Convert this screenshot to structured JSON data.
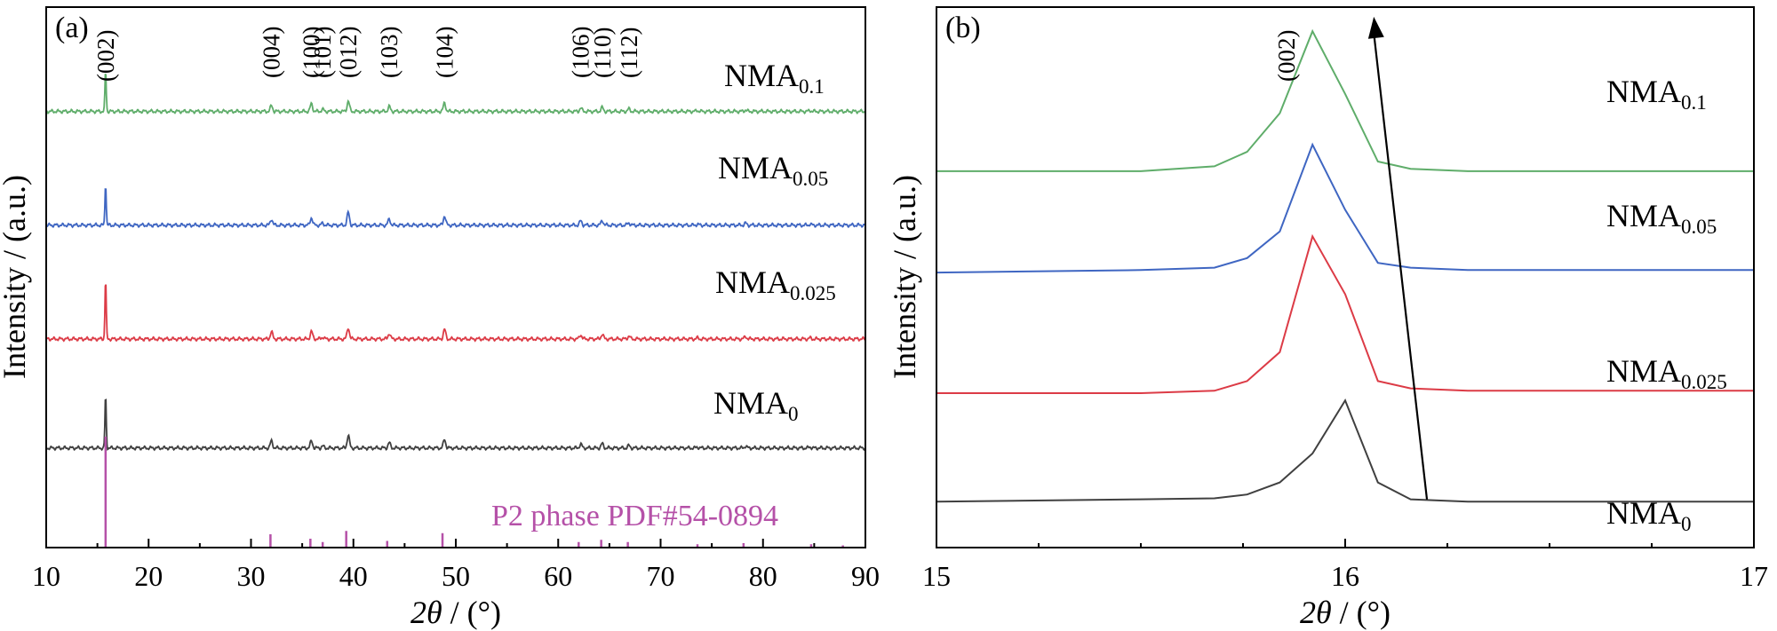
{
  "figure": {
    "ylabel": "Intensity / (a.u.)",
    "xlabel_symbol": "2θ",
    "xlabel_unit": " / (°)"
  },
  "chart_data": [
    {
      "panel": "(a)",
      "type": "line",
      "xlim": [
        10,
        90
      ],
      "x_ticks": [
        10,
        20,
        30,
        40,
        50,
        60,
        70,
        80,
        90
      ],
      "y_ticks": "none",
      "grid": false,
      "ylabel": "Intensity / (a.u.)",
      "xlabel": "2θ / (°)",
      "peak_labels": [
        {
          "label": "(002)",
          "x": 15.8
        },
        {
          "label": "(004)",
          "x": 32.0
        },
        {
          "label": "(100)",
          "x": 35.9
        },
        {
          "label": "(101)",
          "x": 37.0
        },
        {
          "label": "(012)",
          "x": 39.5
        },
        {
          "label": "(103)",
          "x": 43.5
        },
        {
          "label": "(104)",
          "x": 48.9
        },
        {
          "label": "(106)",
          "x": 62.2
        },
        {
          "label": "(110)",
          "x": 64.3
        },
        {
          "label": "(112)",
          "x": 66.9
        }
      ],
      "series": [
        {
          "name": "NMA0.1",
          "label_main": "NMA",
          "label_sub": "0.1",
          "color": "#5fad6a",
          "baseline": 8.0,
          "peaks": [
            [
              15.8,
              0.85
            ],
            [
              32.0,
              0.12
            ],
            [
              35.9,
              0.16
            ],
            [
              37.0,
              0.04
            ],
            [
              39.5,
              0.22
            ],
            [
              43.5,
              0.1
            ],
            [
              48.9,
              0.18
            ],
            [
              62.2,
              0.07
            ],
            [
              64.3,
              0.08
            ],
            [
              66.9,
              0.05
            ],
            [
              73.6,
              0.02
            ],
            [
              78.3,
              0.03
            ],
            [
              84.6,
              0.02
            ]
          ]
        },
        {
          "name": "NMA0.05",
          "label_main": "NMA",
          "label_sub": "0.05",
          "color": "#3f66c2",
          "baseline": 5.6,
          "peaks": [
            [
              15.8,
              0.88
            ],
            [
              32.0,
              0.13
            ],
            [
              35.9,
              0.16
            ],
            [
              37.0,
              0.04
            ],
            [
              39.5,
              0.27
            ],
            [
              43.5,
              0.13
            ],
            [
              48.9,
              0.2
            ],
            [
              62.2,
              0.09
            ],
            [
              64.3,
              0.1
            ],
            [
              66.9,
              0.05
            ],
            [
              73.6,
              0.02
            ],
            [
              78.3,
              0.04
            ],
            [
              84.6,
              0.02
            ]
          ]
        },
        {
          "name": "NMA0.025",
          "label_main": "NMA",
          "label_sub": "0.025",
          "color": "#dc3b46",
          "baseline": 3.2,
          "peaks": [
            [
              15.8,
              1.25
            ],
            [
              32.0,
              0.15
            ],
            [
              35.9,
              0.16
            ],
            [
              37.0,
              0.04
            ],
            [
              39.5,
              0.24
            ],
            [
              43.5,
              0.12
            ],
            [
              48.9,
              0.2
            ],
            [
              62.2,
              0.09
            ],
            [
              64.3,
              0.1
            ],
            [
              66.9,
              0.06
            ],
            [
              73.6,
              0.02
            ],
            [
              78.3,
              0.05
            ],
            [
              84.6,
              0.02
            ]
          ]
        },
        {
          "name": "NMA0",
          "label_main": "NMA",
          "label_sub": "0",
          "color": "#404040",
          "baseline": 0.9,
          "peaks": [
            [
              15.8,
              1.1
            ],
            [
              32.0,
              0.15
            ],
            [
              35.9,
              0.15
            ],
            [
              37.0,
              0.04
            ],
            [
              39.5,
              0.27
            ],
            [
              43.5,
              0.11
            ],
            [
              48.9,
              0.18
            ],
            [
              62.2,
              0.08
            ],
            [
              64.3,
              0.09
            ],
            [
              66.9,
              0.05
            ],
            [
              73.6,
              0.02
            ],
            [
              78.3,
              0.04
            ],
            [
              84.6,
              0.02
            ]
          ]
        }
      ],
      "reference": {
        "label": "P2 phase PDF#54-0894",
        "color": "#b551a8",
        "lines": [
          [
            15.8,
            100
          ],
          [
            31.9,
            12
          ],
          [
            35.8,
            8
          ],
          [
            37.0,
            5
          ],
          [
            39.3,
            15
          ],
          [
            43.3,
            6
          ],
          [
            48.7,
            13
          ],
          [
            62.0,
            5
          ],
          [
            64.2,
            7
          ],
          [
            66.8,
            5
          ],
          [
            73.6,
            3
          ],
          [
            78.1,
            4
          ],
          [
            84.7,
            3
          ],
          [
            87.8,
            2
          ]
        ]
      }
    },
    {
      "panel": "(b)",
      "type": "line",
      "xlim": [
        15,
        17
      ],
      "x_ticks": [
        15,
        16,
        17
      ],
      "y_ticks": "none",
      "grid": false,
      "ylabel": "Intensity / (a.u.)",
      "xlabel": "2θ / (°)",
      "peak_label": {
        "label": "(002)",
        "x": 15.92
      },
      "series": [
        {
          "name": "NMA0.1",
          "label_main": "NMA",
          "label_sub": "0.1",
          "color": "#5fad6a",
          "x": [
            15.0,
            15.5,
            15.68,
            15.76,
            15.84,
            15.92,
            16.0,
            16.08,
            16.16,
            16.3,
            16.6,
            17.0
          ],
          "y": [
            7.0,
            7.0,
            7.1,
            7.4,
            8.2,
            9.9,
            8.6,
            7.2,
            7.05,
            7.0,
            7.0,
            7.0
          ]
        },
        {
          "name": "NMA0.05",
          "label_main": "NMA",
          "label_sub": "0.05",
          "color": "#3f66c2",
          "x": [
            15.0,
            15.5,
            15.68,
            15.76,
            15.84,
            15.92,
            16.0,
            16.08,
            16.16,
            16.3,
            16.6,
            17.0
          ],
          "y": [
            4.9,
            4.95,
            5.0,
            5.2,
            5.75,
            7.55,
            6.2,
            5.1,
            5.0,
            4.95,
            4.95,
            4.95
          ]
        },
        {
          "name": "NMA0.025",
          "label_main": "NMA",
          "label_sub": "0.025",
          "color": "#dc3b46",
          "x": [
            15.0,
            15.5,
            15.68,
            15.76,
            15.84,
            15.92,
            16.0,
            16.08,
            16.16,
            16.3,
            16.6,
            17.0
          ],
          "y": [
            2.4,
            2.4,
            2.45,
            2.65,
            3.25,
            5.65,
            4.45,
            2.65,
            2.5,
            2.45,
            2.45,
            2.45
          ]
        },
        {
          "name": "NMA0",
          "label_main": "NMA",
          "label_sub": "0",
          "color": "#404040",
          "x": [
            15.0,
            15.5,
            15.68,
            15.76,
            15.84,
            15.92,
            16.0,
            16.08,
            16.16,
            16.3,
            16.6,
            17.0
          ],
          "y": [
            0.15,
            0.2,
            0.22,
            0.3,
            0.55,
            1.15,
            2.25,
            0.55,
            0.2,
            0.15,
            0.15,
            0.15
          ]
        }
      ],
      "arrow": {
        "from": [
          16.2,
          0.2
        ],
        "to": [
          16.07,
          10.2
        ],
        "color": "#000000"
      }
    }
  ]
}
